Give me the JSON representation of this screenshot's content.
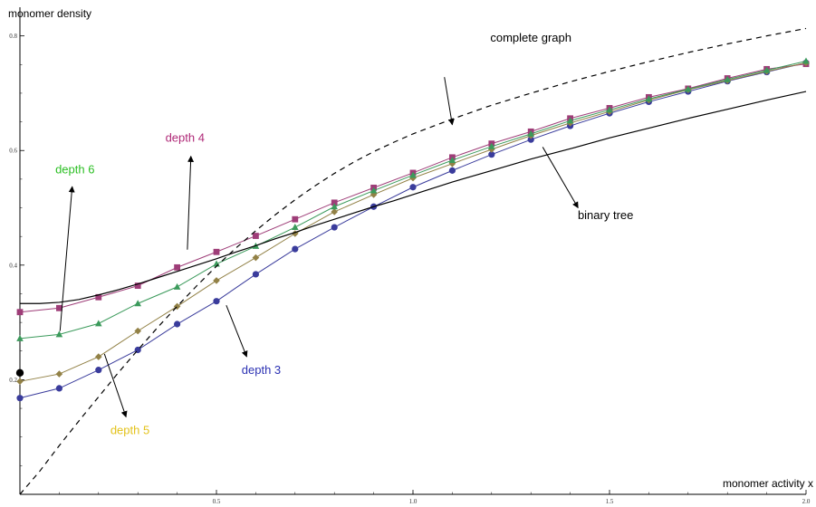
{
  "chart_data": {
    "type": "line",
    "xlabel": "monomer activity x",
    "ylabel": "monomer density",
    "xlim": [
      0,
      2.0
    ],
    "ylim": [
      0,
      0.85
    ],
    "x_ticks": [
      {
        "value": 0.5,
        "label": "0.5"
      },
      {
        "value": 1.0,
        "label": "1.0"
      },
      {
        "value": 1.5,
        "label": "1.5"
      },
      {
        "value": 2.0,
        "label": "2.0"
      }
    ],
    "y_ticks": [
      {
        "value": 0.2,
        "label": "0.2"
      },
      {
        "value": 0.4,
        "label": "0.4"
      },
      {
        "value": 0.6,
        "label": "0.6"
      },
      {
        "value": 0.8,
        "label": "0.8"
      }
    ],
    "grid": false,
    "series": [
      {
        "name": "depth 3",
        "color": "#3a3c9c",
        "marker": "circle",
        "x": [
          0,
          0.1,
          0.2,
          0.3,
          0.4,
          0.5,
          0.6,
          0.7,
          0.8,
          0.9,
          1.0,
          1.1,
          1.2,
          1.3,
          1.4,
          1.5,
          1.6,
          1.7,
          1.8,
          1.9,
          2.0
        ],
        "y": [
          0.168,
          0.185,
          0.217,
          0.252,
          0.297,
          0.337,
          0.384,
          0.428,
          0.466,
          0.502,
          0.536,
          0.565,
          0.593,
          0.619,
          0.643,
          0.665,
          0.685,
          0.703,
          0.721,
          0.737,
          0.753
        ]
      },
      {
        "name": "depth 4",
        "color": "#9e3d78",
        "marker": "square",
        "x": [
          0,
          0.1,
          0.2,
          0.3,
          0.4,
          0.5,
          0.6,
          0.7,
          0.8,
          0.9,
          1.0,
          1.1,
          1.2,
          1.3,
          1.4,
          1.5,
          1.6,
          1.7,
          1.8,
          1.9,
          2.0
        ],
        "y": [
          0.318,
          0.325,
          0.344,
          0.364,
          0.396,
          0.423,
          0.451,
          0.48,
          0.509,
          0.535,
          0.561,
          0.588,
          0.612,
          0.633,
          0.656,
          0.674,
          0.693,
          0.708,
          0.726,
          0.742,
          0.751
        ]
      },
      {
        "name": "depth 5",
        "color": "#928146",
        "marker": "diamond",
        "x": [
          0,
          0.1,
          0.2,
          0.3,
          0.4,
          0.5,
          0.6,
          0.7,
          0.8,
          0.9,
          1.0,
          1.1,
          1.2,
          1.3,
          1.4,
          1.5,
          1.6,
          1.7,
          1.8,
          1.9,
          2.0
        ],
        "y": [
          0.197,
          0.21,
          0.24,
          0.285,
          0.328,
          0.373,
          0.413,
          0.455,
          0.493,
          0.523,
          0.552,
          0.577,
          0.602,
          0.626,
          0.648,
          0.668,
          0.688,
          0.706,
          0.722,
          0.738,
          0.753
        ]
      },
      {
        "name": "depth 6",
        "color": "#3b9a5b",
        "marker": "triangle",
        "x": [
          0,
          0.1,
          0.2,
          0.3,
          0.4,
          0.5,
          0.6,
          0.7,
          0.8,
          0.9,
          1.0,
          1.1,
          1.2,
          1.3,
          1.4,
          1.5,
          1.6,
          1.7,
          1.8,
          1.9,
          2.0
        ],
        "y": [
          0.272,
          0.279,
          0.298,
          0.333,
          0.362,
          0.402,
          0.433,
          0.466,
          0.502,
          0.53,
          0.557,
          0.583,
          0.607,
          0.629,
          0.652,
          0.671,
          0.69,
          0.707,
          0.724,
          0.74,
          0.756
        ]
      },
      {
        "name": "binary tree",
        "color": "#000000",
        "marker": "none",
        "dash": "solid",
        "x": [
          0,
          0.05,
          0.1,
          0.15,
          0.2,
          0.25,
          0.3,
          0.35,
          0.4,
          0.45,
          0.5,
          0.55,
          0.6,
          0.65,
          0.7,
          0.75,
          0.8,
          0.85,
          0.9,
          0.95,
          1.0,
          1.1,
          1.2,
          1.3,
          1.4,
          1.5,
          1.6,
          1.7,
          1.8,
          1.9,
          2.0
        ],
        "y": [
          0.333,
          0.333,
          0.335,
          0.34,
          0.348,
          0.357,
          0.367,
          0.378,
          0.389,
          0.4,
          0.411,
          0.423,
          0.434,
          0.446,
          0.457,
          0.469,
          0.48,
          0.491,
          0.502,
          0.512,
          0.523,
          0.545,
          0.565,
          0.585,
          0.603,
          0.622,
          0.639,
          0.656,
          0.672,
          0.688,
          0.703
        ]
      },
      {
        "name": "complete graph",
        "color": "#000000",
        "marker": "none",
        "dash": "dashed",
        "x": [
          0,
          0.05,
          0.1,
          0.15,
          0.2,
          0.25,
          0.3,
          0.35,
          0.4,
          0.45,
          0.5,
          0.55,
          0.6,
          0.65,
          0.7,
          0.75,
          0.8,
          0.85,
          0.9,
          0.95,
          1.0,
          1.1,
          1.2,
          1.3,
          1.4,
          1.5,
          1.6,
          1.7,
          1.8,
          1.9,
          2.0
        ],
        "y": [
          0.0,
          0.04,
          0.085,
          0.128,
          0.17,
          0.212,
          0.252,
          0.291,
          0.328,
          0.364,
          0.398,
          0.43,
          0.46,
          0.488,
          0.514,
          0.538,
          0.56,
          0.58,
          0.598,
          0.614,
          0.629,
          0.655,
          0.679,
          0.7,
          0.72,
          0.738,
          0.755,
          0.771,
          0.786,
          0.8,
          0.813
        ]
      }
    ],
    "special_point": {
      "x": 0,
      "y": 0.212,
      "color": "#000000"
    },
    "annotations": [
      {
        "name": "complete-graph",
        "text": "complete graph",
        "color": "#000000",
        "x": 1.3,
        "y": 0.79,
        "arrow_from": [
          1.08,
          0.728
        ],
        "arrow_to": [
          1.1,
          0.645
        ]
      },
      {
        "name": "depth-4",
        "text": "depth 4",
        "color": "#b02a78",
        "x": 0.42,
        "y": 0.615,
        "arrow_from": [
          0.426,
          0.427
        ],
        "arrow_to": [
          0.435,
          0.59
        ]
      },
      {
        "name": "depth-6",
        "text": "depth 6",
        "color": "#2bbf23",
        "x": 0.14,
        "y": 0.56,
        "arrow_from": [
          0.102,
          0.285
        ],
        "arrow_to": [
          0.133,
          0.537
        ]
      },
      {
        "name": "binary-tree",
        "text": "binary tree",
        "color": "#000000",
        "x": 1.49,
        "y": 0.48,
        "arrow_from": [
          1.33,
          0.606
        ],
        "arrow_to": [
          1.42,
          0.5
        ]
      },
      {
        "name": "depth-3",
        "text": "depth 3",
        "color": "#2b31b3",
        "x": 0.614,
        "y": 0.21,
        "arrow_from": [
          0.525,
          0.33
        ],
        "arrow_to": [
          0.577,
          0.24
        ]
      },
      {
        "name": "depth-5",
        "text": "depth 5",
        "color": "#e3c21a",
        "x": 0.28,
        "y": 0.105,
        "arrow_from": [
          0.215,
          0.245
        ],
        "arrow_to": [
          0.27,
          0.135
        ]
      }
    ]
  }
}
